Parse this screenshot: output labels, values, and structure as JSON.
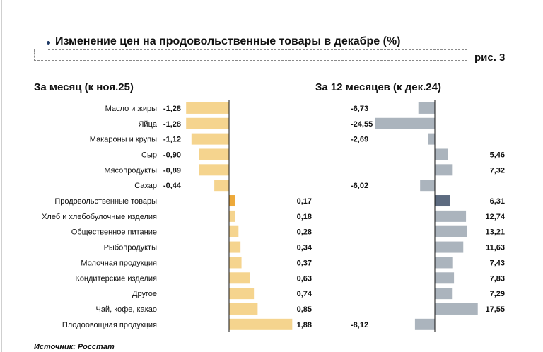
{
  "header": {
    "title": "Изменение цен на продовольственные товары в декабре (%)",
    "figure_label": "рис. 3"
  },
  "footer": {
    "source": "Источник: Росстат"
  },
  "colors": {
    "month_bar": "#f5d48e",
    "month_highlight": "#eda93a",
    "year_bar": "#abb4bd",
    "year_highlight": "#5d6b80",
    "axis": "#111111"
  },
  "chart_data": {
    "type": "bar",
    "orientation": "horizontal",
    "categories": [
      "Масло и жиры",
      "Яйца",
      "Макароны и крупы",
      "Сыр",
      "Мясопродукты",
      "Сахар",
      "Продовольственные товары",
      "Хлеб и хлебобулочные изделия",
      "Общественное питание",
      "Рыбопродукты",
      "Молочная продукция",
      "Кондитерские изделия",
      "Другое",
      "Чай, кофе, какао",
      "Плодоовощная продукция"
    ],
    "highlight_category": "Продовольственные товары",
    "series": [
      {
        "name": "За месяц (к ноя.25)",
        "values": [
          -1.28,
          -1.28,
          -1.12,
          -0.9,
          -0.89,
          -0.44,
          0.17,
          0.18,
          0.28,
          0.34,
          0.37,
          0.63,
          0.74,
          0.85,
          1.88
        ],
        "labels": [
          "-1,28",
          "-1,28",
          "-1,12",
          "-0,90",
          "-0,89",
          "-0,44",
          "0,17",
          "0,18",
          "0,28",
          "0,34",
          "0,37",
          "0,63",
          "0,74",
          "0,85",
          "1,88"
        ]
      },
      {
        "name": "За 12 месяцев (к дек.24)",
        "values": [
          -6.73,
          -24.55,
          -2.69,
          5.46,
          7.32,
          -6.02,
          6.31,
          12.74,
          13.21,
          11.63,
          7.43,
          7.83,
          7.29,
          17.55,
          -8.12
        ],
        "labels": [
          "-6,73",
          "-24,55",
          "-2,69",
          "5,46",
          "7,32",
          "-6,02",
          "6,31",
          "12,74",
          "13,21",
          "11,63",
          "7,43",
          "7,83",
          "7,29",
          "17,55",
          "-8,12"
        ]
      }
    ],
    "grid": false,
    "legend": "none"
  }
}
